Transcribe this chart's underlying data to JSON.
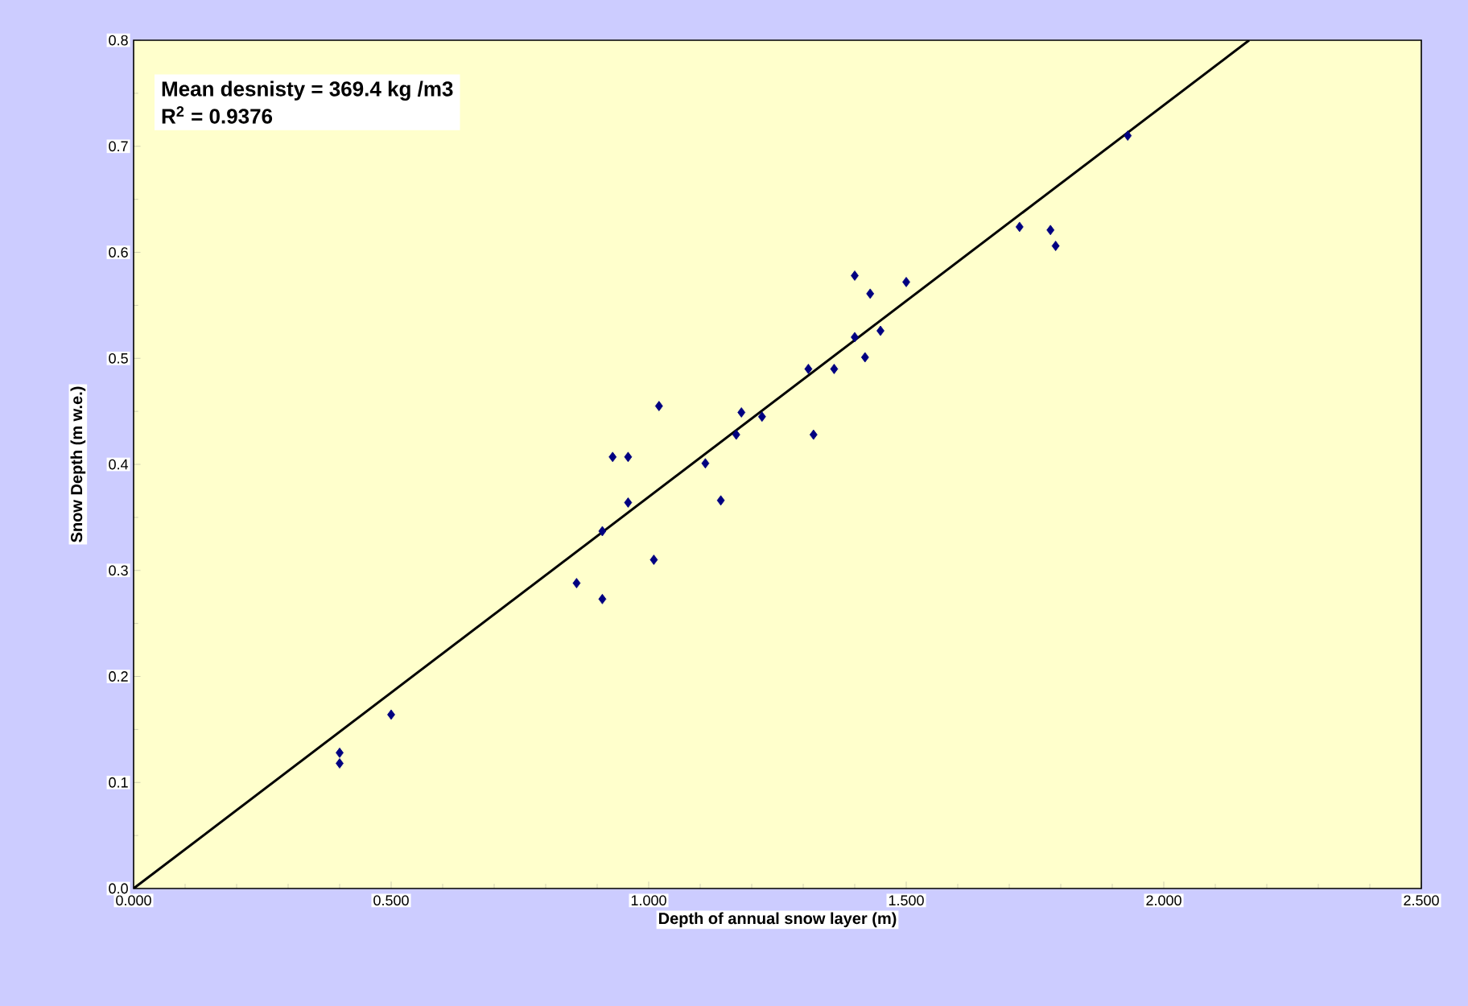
{
  "chart_data": {
    "type": "scatter",
    "xlabel": "Depth of annual snow layer (m)",
    "ylabel": "Snow Depth (m w.e.)",
    "annotations": [
      "Mean desnisty = 369.4 kg /m3",
      "R$^{2}$ = 0.9376"
    ],
    "xlim": [
      0,
      2.5
    ],
    "ylim": [
      0,
      0.8
    ],
    "xticks": [
      {
        "value": 0,
        "label": "0.000"
      },
      {
        "value": 0.5,
        "label": "0.500"
      },
      {
        "value": 1,
        "label": "1.000"
      },
      {
        "value": 1.5,
        "label": "1.500"
      },
      {
        "value": 2,
        "label": "2.000"
      },
      {
        "value": 2.5,
        "label": "2.500"
      }
    ],
    "yticks": [
      {
        "value": 0,
        "label": "0.0"
      },
      {
        "value": 0.1,
        "label": "0.1"
      },
      {
        "value": 0.2,
        "label": "0.2"
      },
      {
        "value": 0.3,
        "label": "0.3"
      },
      {
        "value": 0.4,
        "label": "0.4"
      },
      {
        "value": 0.5,
        "label": "0.5"
      },
      {
        "value": 0.6,
        "label": "0.6"
      },
      {
        "value": 0.7,
        "label": "0.7"
      },
      {
        "value": 0.8,
        "label": "0.8"
      }
    ],
    "grid": false,
    "series": [
      {
        "type": "scatter",
        "color": "#000080",
        "marker": "diamond",
        "x": [
          0.4,
          0.4,
          0.5,
          0.86,
          0.91,
          0.91,
          0.93,
          0.96,
          0.96,
          1.01,
          1.02,
          1.11,
          1.14,
          1.17,
          1.18,
          1.22,
          1.32,
          1.31,
          1.36,
          1.4,
          1.4,
          1.42,
          1.43,
          1.45,
          1.5,
          1.72,
          1.78,
          1.79,
          1.93
        ],
        "values": [
          0.128,
          0.118,
          0.164,
          0.288,
          0.273,
          0.337,
          0.407,
          0.407,
          0.364,
          0.31,
          0.455,
          0.401,
          0.366,
          0.428,
          0.449,
          0.445,
          0.428,
          0.49,
          0.49,
          0.578,
          0.52,
          0.501,
          0.561,
          0.526,
          0.572,
          0.624,
          0.621,
          0.606,
          0.71
        ]
      },
      {
        "type": "line",
        "color": "#000000",
        "marker": "none",
        "x": [
          0,
          2.1657
        ],
        "values": [
          0,
          0.8
        ]
      }
    ]
  }
}
